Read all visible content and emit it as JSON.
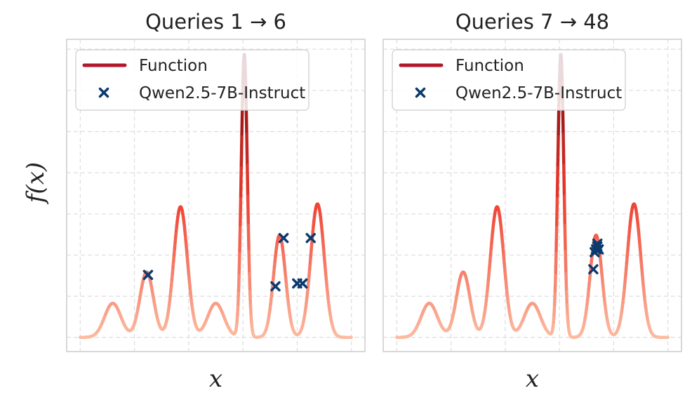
{
  "chart_data": [
    {
      "type": "line",
      "title": "Queries 1 → 6",
      "xlabel": "x",
      "ylabel": "f(x)",
      "xlim": [
        -0.05,
        1.05
      ],
      "ylim": [
        -0.05,
        1.05
      ],
      "grid": true,
      "legend_placement": "top-left",
      "series": [
        {
          "name": "Function",
          "kind": "line",
          "color": "#b2182b"
        },
        {
          "name": "Qwen2.5-7B-Instruct",
          "kind": "scatter",
          "marker": "x",
          "color": "#0b3a6f",
          "points": [
            [
              0.25,
              0.22
            ],
            [
              0.72,
              0.18
            ],
            [
              0.75,
              0.35
            ],
            [
              0.8,
              0.19
            ],
            [
              0.82,
              0.19
            ],
            [
              0.85,
              0.35
            ]
          ]
        }
      ]
    },
    {
      "type": "line",
      "title": "Queries 7 → 48",
      "xlabel": "x",
      "ylabel": "",
      "xlim": [
        -0.05,
        1.05
      ],
      "ylim": [
        -0.05,
        1.05
      ],
      "grid": true,
      "legend_placement": "top-left",
      "series": [
        {
          "name": "Function",
          "kind": "line",
          "color": "#b2182b"
        },
        {
          "name": "Qwen2.5-7B-Instruct",
          "kind": "scatter",
          "marker": "x",
          "color": "#0b3a6f",
          "points": [
            [
              0.725,
              0.24
            ],
            [
              0.73,
              0.3
            ],
            [
              0.735,
              0.31
            ],
            [
              0.74,
              0.32
            ],
            [
              0.745,
              0.31
            ],
            [
              0.74,
              0.33
            ]
          ]
        }
      ]
    }
  ],
  "function_shape": {
    "description_free": true,
    "bumps": [
      {
        "center": 0.12,
        "width": 0.03,
        "height": 0.12
      },
      {
        "center": 0.245,
        "width": 0.025,
        "height": 0.23
      },
      {
        "center": 0.37,
        "width": 0.025,
        "height": 0.46
      },
      {
        "center": 0.5,
        "width": 0.03,
        "height": 0.12
      },
      {
        "center": 0.605,
        "width": 0.011,
        "height": 1.0
      },
      {
        "center": 0.735,
        "width": 0.022,
        "height": 0.36
      },
      {
        "center": 0.875,
        "width": 0.025,
        "height": 0.47
      }
    ]
  }
}
